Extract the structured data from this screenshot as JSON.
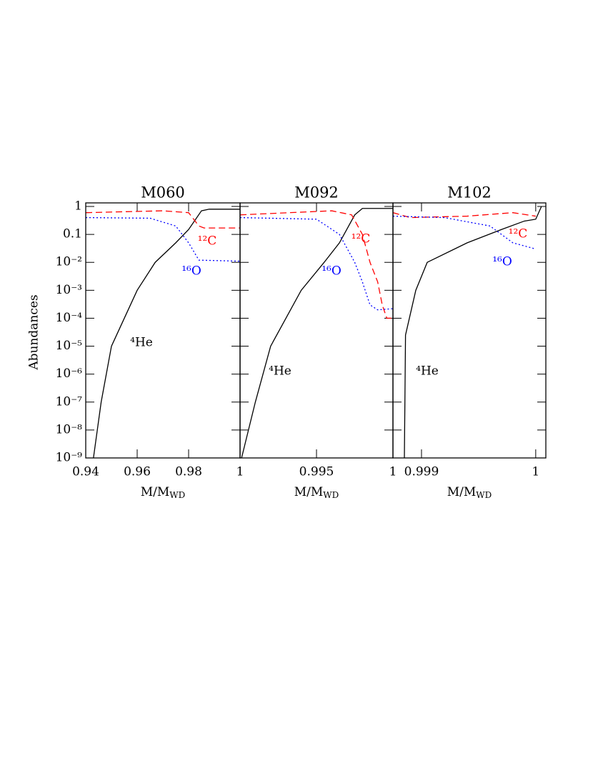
{
  "chart_data": [
    {
      "type": "line",
      "title": "M060",
      "log_y": true,
      "y_label": "Abundances",
      "x_label": {
        "main": "M/M",
        "sub": "WD"
      },
      "xlim": [
        0.94,
        1.0
      ],
      "xticks": [
        0.94,
        0.96,
        0.98,
        1
      ],
      "ylim": [
        1e-09,
        1
      ],
      "yticks": [
        {
          "value": 1e-09,
          "label": "10⁻⁹"
        },
        {
          "value": 1e-08,
          "label": "10⁻⁸"
        },
        {
          "value": 1e-07,
          "label": "10⁻⁷"
        },
        {
          "value": 1e-06,
          "label": "10⁻⁶"
        },
        {
          "value": 1e-05,
          "label": "10⁻⁵"
        },
        {
          "value": 0.0001,
          "label": "10⁻⁴"
        },
        {
          "value": 0.001,
          "label": "10⁻³"
        },
        {
          "value": 0.01,
          "label": "10⁻²"
        },
        0.1,
        1
      ],
      "series": [
        {
          "name": "⁴He",
          "color": "#000000",
          "style": "solid",
          "x": [
            0.943,
            0.946,
            0.95,
            0.955,
            0.96,
            0.967,
            0.975,
            0.98,
            0.985,
            0.988,
            1.0
          ],
          "values": [
            1e-09,
            1e-07,
            1e-05,
            0.0001,
            0.001,
            0.01,
            0.05,
            0.15,
            0.7,
            0.8,
            0.8
          ]
        },
        {
          "name": "¹²C",
          "color": "#ff0000",
          "style": "dashed",
          "x": [
            0.94,
            0.97,
            0.98,
            0.984,
            0.986,
            1.0
          ],
          "values": [
            0.6,
            0.7,
            0.6,
            0.2,
            0.17,
            0.17
          ]
        },
        {
          "name": "¹⁶O",
          "color": "#0000ff",
          "style": "dotted",
          "x": [
            0.94,
            0.965,
            0.975,
            0.98,
            0.984,
            1.0
          ],
          "values": [
            0.4,
            0.38,
            0.2,
            0.05,
            0.012,
            0.011
          ]
        }
      ]
    },
    {
      "type": "line",
      "title": "M092",
      "log_y": true,
      "x_label": {
        "main": "M/M",
        "sub": "WD"
      },
      "xlim": [
        0.99,
        1.0
      ],
      "xticks": [
        0.995,
        1
      ],
      "ylim": [
        1e-09,
        1
      ],
      "series": [
        {
          "name": "⁴He",
          "color": "#000000",
          "style": "solid",
          "x": [
            0.9901,
            0.991,
            0.992,
            0.993,
            0.994,
            0.9955,
            0.9965,
            0.9975,
            0.998,
            1.0
          ],
          "values": [
            1e-09,
            1e-07,
            1e-05,
            0.0001,
            0.001,
            0.01,
            0.05,
            0.5,
            0.85,
            0.85
          ]
        },
        {
          "name": "¹²C",
          "color": "#ff0000",
          "style": "dashed",
          "x": [
            0.99,
            0.996,
            0.9973,
            0.998,
            0.9985,
            0.999,
            0.9993,
            0.9996,
            1.0
          ],
          "values": [
            0.5,
            0.7,
            0.5,
            0.1,
            0.01,
            0.002,
            0.0003,
            0.0001,
            0.0001
          ]
        },
        {
          "name": "¹⁶O",
          "color": "#0000ff",
          "style": "dotted",
          "x": [
            0.99,
            0.995,
            0.9965,
            0.9975,
            0.998,
            0.9985,
            0.999,
            1.0
          ],
          "values": [
            0.4,
            0.35,
            0.1,
            0.01,
            0.002,
            0.0003,
            0.0002,
            0.00022
          ]
        }
      ]
    },
    {
      "type": "line",
      "title": "M102",
      "log_y": true,
      "x_label": {
        "main": "M/M",
        "sub": "WD"
      },
      "xlim": [
        0.99875,
        1.0000886
      ],
      "xticks": [
        0.999,
        1
      ],
      "ylim": [
        1e-09,
        1
      ],
      "series": [
        {
          "name": "⁴He",
          "color": "#000000",
          "style": "solid",
          "x": [
            0.99885,
            0.99886,
            0.99895,
            0.99905,
            0.9994,
            0.9997,
            0.9999,
            1.0,
            1.00005
          ],
          "values": [
            1e-09,
            2.5e-05,
            0.001,
            0.01,
            0.05,
            0.15,
            0.3,
            0.35,
            1
          ]
        },
        {
          "name": "¹²C",
          "color": "#ff0000",
          "style": "dashed",
          "x": [
            0.99875,
            0.9989,
            0.9994,
            0.9998,
            1.0
          ],
          "values": [
            0.6,
            0.4,
            0.45,
            0.6,
            0.45
          ]
        },
        {
          "name": "¹⁶O",
          "color": "#0000ff",
          "style": "dotted",
          "x": [
            0.99875,
            0.9992,
            0.9996,
            0.9998,
            1.0
          ],
          "values": [
            0.45,
            0.4,
            0.2,
            0.05,
            0.03
          ]
        }
      ]
    }
  ]
}
